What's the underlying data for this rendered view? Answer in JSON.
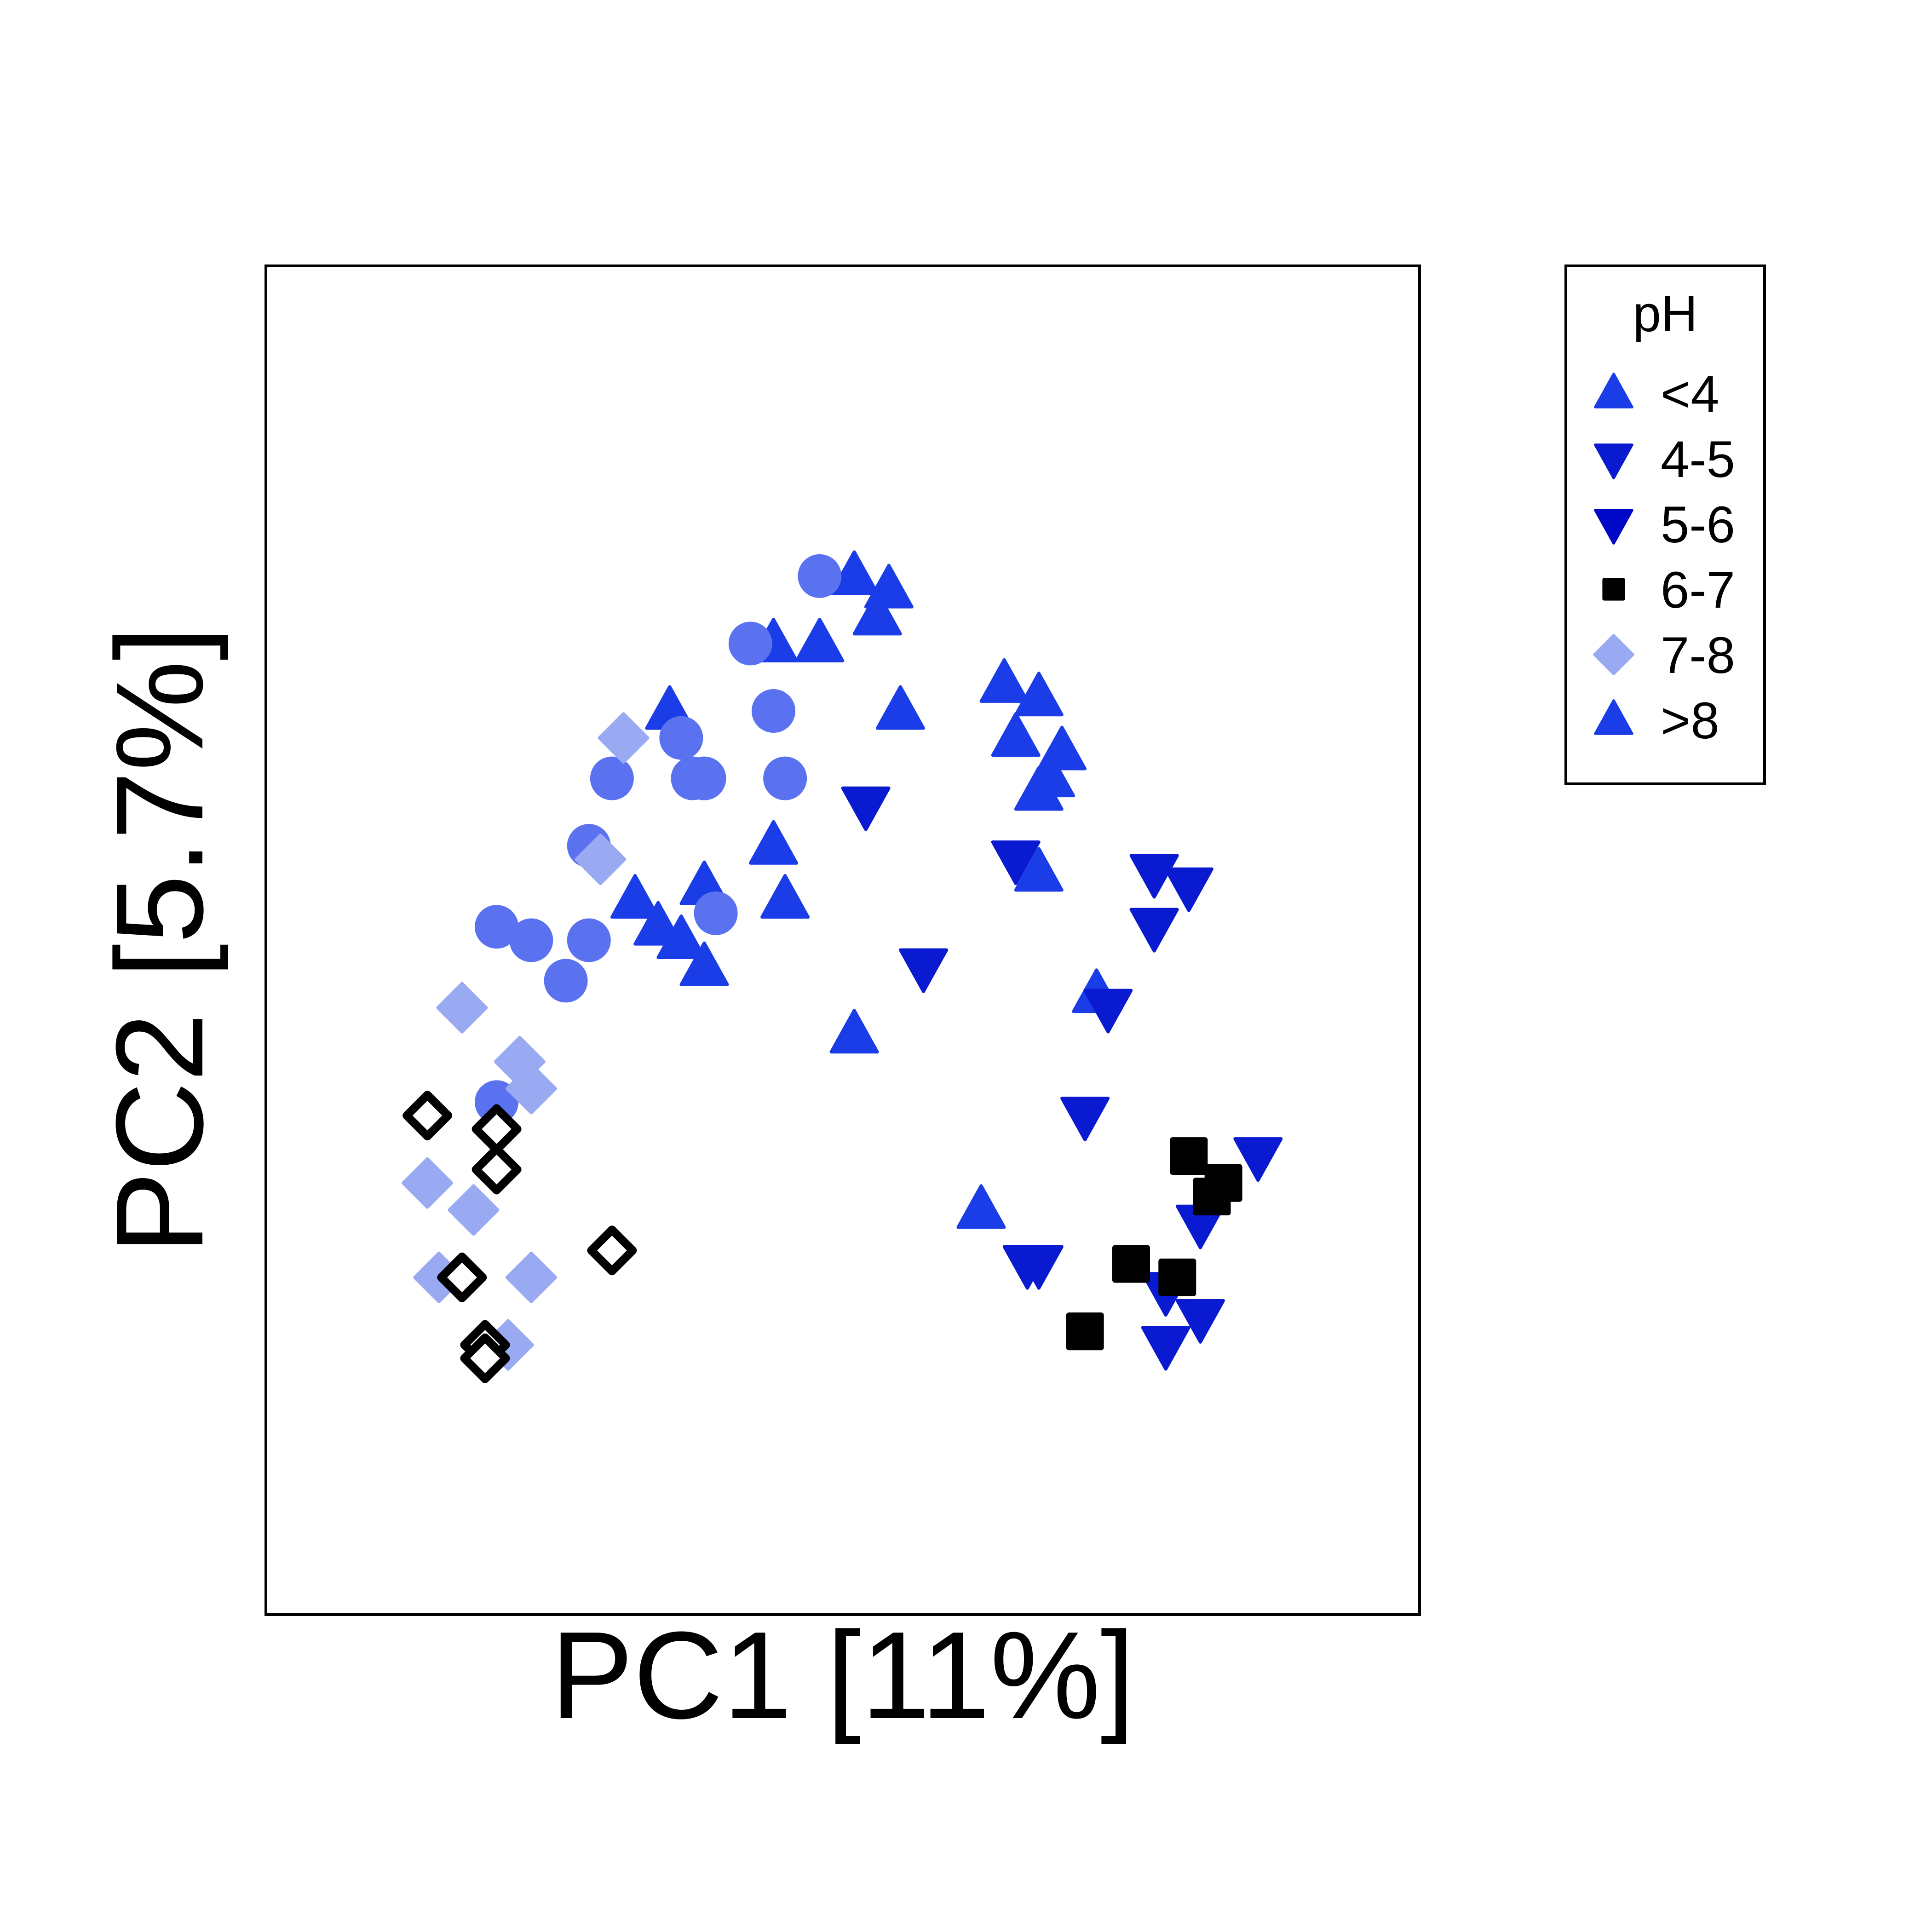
{
  "chart_data": {
    "type": "scatter",
    "title": "",
    "xlabel": "PC1 [11%]",
    "ylabel": "PC2 [5.7%]",
    "xlim": [
      0,
      100
    ],
    "ylim": [
      0,
      100
    ],
    "ticks": "none",
    "grid": false,
    "legend": {
      "title": "pH",
      "placement": "outside-right-top",
      "entries": [
        {
          "label": "<4",
          "marker": "triangle-up",
          "color": "#1a3de8"
        },
        {
          "label": "4-5",
          "marker": "triangle-down",
          "color": "#0a1ad0"
        },
        {
          "label": "5-6",
          "marker": "triangle-down",
          "color": "#0008c8"
        },
        {
          "label": "6-7",
          "marker": "square",
          "color": "#000000"
        },
        {
          "label": "7-8",
          "marker": "diamond",
          "color": "#9aaaf2"
        },
        {
          "label": ">8",
          "marker": "triangle-up",
          "color": "#1a3de8"
        }
      ]
    },
    "series": [
      {
        "name": "up-triangle",
        "marker": "triangle-up",
        "color": "#1a3de8",
        "points": [
          [
            51,
            77
          ],
          [
            54,
            76
          ],
          [
            53,
            74
          ],
          [
            44,
            72
          ],
          [
            48,
            72
          ],
          [
            55,
            67
          ],
          [
            35,
            67
          ],
          [
            64,
            69
          ],
          [
            67,
            68
          ],
          [
            65,
            65
          ],
          [
            69,
            64
          ],
          [
            68,
            62
          ],
          [
            67,
            61
          ],
          [
            32,
            53
          ],
          [
            44,
            57
          ],
          [
            38,
            54
          ],
          [
            34,
            51
          ],
          [
            36,
            50
          ],
          [
            45,
            53
          ],
          [
            38,
            48
          ],
          [
            67,
            55
          ],
          [
            72,
            46
          ],
          [
            51,
            43
          ],
          [
            62,
            30
          ]
        ]
      },
      {
        "name": "down-triangle",
        "marker": "triangle-down",
        "color": "#0a1ad0",
        "points": [
          [
            52,
            60
          ],
          [
            65,
            56
          ],
          [
            77,
            55
          ],
          [
            80,
            54
          ],
          [
            77,
            51
          ],
          [
            57,
            48
          ],
          [
            73,
            45
          ],
          [
            71,
            37
          ],
          [
            86,
            34
          ],
          [
            81,
            29
          ],
          [
            66,
            26
          ],
          [
            67,
            26
          ],
          [
            78,
            24
          ],
          [
            81,
            22
          ],
          [
            78,
            20
          ]
        ]
      },
      {
        "name": "circle",
        "marker": "circle",
        "color": "#5a72f0",
        "points": [
          [
            48,
            77
          ],
          [
            42,
            72
          ],
          [
            44,
            67
          ],
          [
            36,
            65
          ],
          [
            30,
            62
          ],
          [
            38,
            62
          ],
          [
            37,
            62
          ],
          [
            45,
            62
          ],
          [
            28,
            57
          ],
          [
            20,
            51
          ],
          [
            23,
            50
          ],
          [
            28,
            50
          ],
          [
            26,
            47
          ],
          [
            39,
            52
          ],
          [
            20,
            38
          ]
        ]
      },
      {
        "name": "light-diamond",
        "marker": "diamond",
        "color": "#9aaaf2",
        "points": [
          [
            31,
            65
          ],
          [
            29,
            56
          ],
          [
            17,
            45
          ],
          [
            22,
            41
          ],
          [
            23,
            39
          ],
          [
            14,
            32
          ],
          [
            18,
            30
          ],
          [
            15,
            25
          ],
          [
            23,
            25
          ],
          [
            21,
            20
          ]
        ]
      },
      {
        "name": "open-diamond",
        "marker": "diamond-open",
        "color": "#000000",
        "points": [
          [
            14,
            37
          ],
          [
            20,
            36
          ],
          [
            20,
            33
          ],
          [
            17,
            25
          ],
          [
            30,
            27
          ],
          [
            19,
            20
          ],
          [
            19,
            19
          ]
        ]
      },
      {
        "name": "black-square",
        "marker": "square",
        "color": "#000000",
        "points": [
          [
            80,
            34
          ],
          [
            83,
            32
          ],
          [
            82,
            31
          ],
          [
            75,
            26
          ],
          [
            79,
            25
          ],
          [
            71,
            21
          ]
        ]
      }
    ]
  }
}
